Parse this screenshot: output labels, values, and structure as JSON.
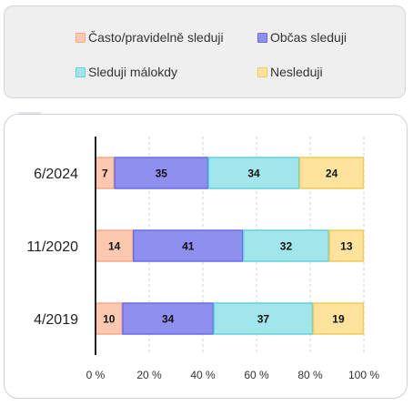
{
  "chart_data": {
    "type": "bar",
    "orientation": "horizontal",
    "stacked": true,
    "categories": [
      "6/2024",
      "11/2020",
      "4/2019"
    ],
    "series": [
      {
        "name": "Často/pravidelně sleduji",
        "values": [
          7,
          14,
          10
        ],
        "fill": "#fcc9b0",
        "stroke": "#f7aa88"
      },
      {
        "name": "Občas sleduji",
        "values": [
          35,
          41,
          34
        ],
        "fill": "#8f8ff0",
        "stroke": "#6b6be8"
      },
      {
        "name": "Sleduji málokdy",
        "values": [
          34,
          32,
          37
        ],
        "fill": "#a0e6ea",
        "stroke": "#5fd4dc"
      },
      {
        "name": "Nesleduji",
        "values": [
          24,
          13,
          19
        ],
        "fill": "#fde39c",
        "stroke": "#f7c95a"
      }
    ],
    "xlim": [
      0,
      100
    ],
    "x_ticks": [
      "0 %",
      "20 %",
      "40 %",
      "60 %",
      "80 %",
      "100 %"
    ],
    "grid": "vertical dashed",
    "legend_position": "top"
  }
}
